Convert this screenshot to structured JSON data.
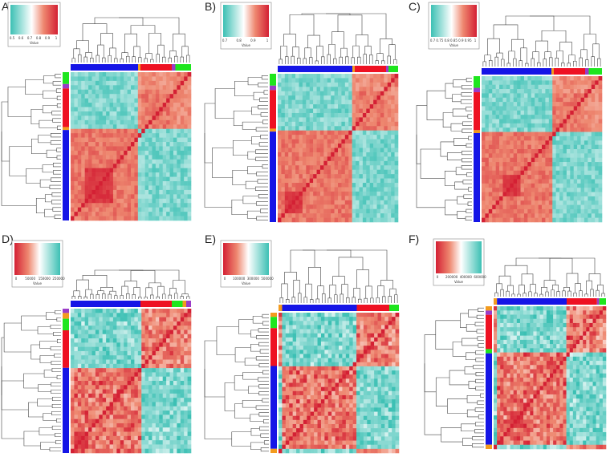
{
  "colors": {
    "teal": "#3cc0b4",
    "white": "#ffffff",
    "salmon": "#ee8870",
    "red": "#d42034",
    "group_blue": "#1515e6",
    "group_red": "#ee1122",
    "group_green": "#1ee61e",
    "group_purple": "#9b3cc8",
    "group_orange": "#f39b1e",
    "dendro": "#444444"
  },
  "chart_data": [
    {
      "type": "heatmap",
      "panel": "A)",
      "legend_direction": "teal-to-red",
      "legend_ticks": [
        "0.5",
        "0.6",
        "0.7",
        "0.8",
        "0.9",
        "1"
      ],
      "legend_label": "Value",
      "col_groups": [
        {
          "group": "blue",
          "frac": 0.56
        },
        {
          "group": "orange",
          "frac": 0.02
        },
        {
          "group": "red",
          "frac": 0.26
        },
        {
          "group": "purple",
          "frac": 0.03
        },
        {
          "group": "green",
          "frac": 0.13
        }
      ],
      "row_groups": [
        {
          "group": "green",
          "frac": 0.08
        },
        {
          "group": "purple",
          "frac": 0.03
        },
        {
          "group": "red",
          "frac": 0.26
        },
        {
          "group": "orange",
          "frac": 0.02
        },
        {
          "group": "blue",
          "frac": 0.61
        }
      ],
      "hot_block": [
        0.12,
        0.34
      ]
    },
    {
      "type": "heatmap",
      "panel": "B)",
      "legend_direction": "teal-to-red",
      "legend_ticks": [
        "0.7",
        "0.8",
        "0.9",
        "1"
      ],
      "legend_label": "Value",
      "col_groups": [
        {
          "group": "blue",
          "frac": 0.62
        },
        {
          "group": "orange",
          "frac": 0.02
        },
        {
          "group": "red",
          "frac": 0.26
        },
        {
          "group": "purple",
          "frac": 0.02
        },
        {
          "group": "green",
          "frac": 0.08
        }
      ],
      "row_groups": [
        {
          "group": "green",
          "frac": 0.08
        },
        {
          "group": "purple",
          "frac": 0.03
        },
        {
          "group": "red",
          "frac": 0.26
        },
        {
          "group": "orange",
          "frac": 0.02
        },
        {
          "group": "blue",
          "frac": 0.61
        }
      ],
      "hot_block": [
        0.06,
        0.22
      ]
    },
    {
      "type": "heatmap",
      "panel": "C)",
      "legend_direction": "teal-to-red",
      "legend_ticks": [
        "0.7",
        "0.75",
        "0.8",
        "0.85",
        "0.9",
        "0.95",
        "1"
      ],
      "legend_label": "Value",
      "col_groups": [
        {
          "group": "blue",
          "frac": 0.58
        },
        {
          "group": "orange",
          "frac": 0.02
        },
        {
          "group": "red",
          "frac": 0.26
        },
        {
          "group": "purple",
          "frac": 0.03
        },
        {
          "group": "green",
          "frac": 0.11
        }
      ],
      "row_groups": [
        {
          "group": "green",
          "frac": 0.08
        },
        {
          "group": "purple",
          "frac": 0.03
        },
        {
          "group": "red",
          "frac": 0.26
        },
        {
          "group": "orange",
          "frac": 0.02
        },
        {
          "group": "blue",
          "frac": 0.61
        }
      ],
      "hot_block": [
        0.18,
        0.32
      ]
    },
    {
      "type": "heatmap",
      "panel": "D)",
      "legend_direction": "red-to-teal",
      "legend_ticks": [
        "0",
        "50000",
        "150000",
        "250000"
      ],
      "legend_label": "Value",
      "col_groups": [
        {
          "group": "blue",
          "frac": 0.58
        },
        {
          "group": "red",
          "frac": 0.26
        },
        {
          "group": "green",
          "frac": 0.09
        },
        {
          "group": "orange",
          "frac": 0.03
        },
        {
          "group": "purple",
          "frac": 0.04
        }
      ],
      "row_groups": [
        {
          "group": "purple",
          "frac": 0.03
        },
        {
          "group": "orange",
          "frac": 0.04
        },
        {
          "group": "green",
          "frac": 0.08
        },
        {
          "group": "red",
          "frac": 0.26
        },
        {
          "group": "blue",
          "frac": 0.59
        }
      ],
      "hot_block": [
        0.02,
        0.14
      ]
    },
    {
      "type": "heatmap",
      "panel": "E)",
      "legend_direction": "red-to-teal",
      "legend_ticks": [
        "0",
        "100000",
        "300000",
        "500000"
      ],
      "legend_label": "Value",
      "col_groups": [
        {
          "group": "orange",
          "frac": 0.03
        },
        {
          "group": "blue",
          "frac": 0.62
        },
        {
          "group": "red",
          "frac": 0.27
        },
        {
          "group": "green",
          "frac": 0.08
        }
      ],
      "row_groups": [
        {
          "group": "orange",
          "frac": 0.03
        },
        {
          "group": "green",
          "frac": 0.08
        },
        {
          "group": "red",
          "frac": 0.27
        },
        {
          "group": "blue",
          "frac": 0.59
        },
        {
          "group": "orange",
          "frac": 0.03
        }
      ],
      "hot_block": null
    },
    {
      "type": "heatmap",
      "panel": "F)",
      "legend_direction": "red-to-teal",
      "legend_ticks": [
        "0",
        "200000",
        "400000",
        "600000"
      ],
      "legend_label": "Value",
      "col_groups": [
        {
          "group": "orange",
          "frac": 0.03
        },
        {
          "group": "blue",
          "frac": 0.62
        },
        {
          "group": "red",
          "frac": 0.27
        },
        {
          "group": "purple",
          "frac": 0.02
        },
        {
          "group": "green",
          "frac": 0.06
        }
      ],
      "row_groups": [
        {
          "group": "orange",
          "frac": 0.03
        },
        {
          "group": "purple",
          "frac": 0.03
        },
        {
          "group": "red",
          "frac": 0.24
        },
        {
          "group": "green",
          "frac": 0.03
        },
        {
          "group": "blue",
          "frac": 0.64
        },
        {
          "group": "orange",
          "frac": 0.03
        }
      ],
      "hot_block": [
        0.14,
        0.26
      ]
    }
  ]
}
